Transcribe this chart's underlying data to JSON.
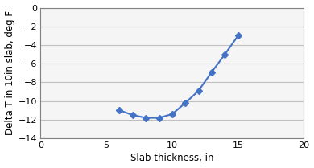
{
  "x": [
    6,
    7,
    8,
    9,
    10,
    11,
    12,
    13,
    14,
    15
  ],
  "y": [
    -11.0,
    -11.5,
    -11.8,
    -11.8,
    -11.4,
    -10.2,
    -8.9,
    -6.9,
    -5.0,
    -3.0
  ],
  "line_color": "#4472C4",
  "marker": "D",
  "marker_size": 4,
  "line_width": 1.5,
  "xlabel": "Slab thickness, in",
  "ylabel": "Delta T in 10in slab, deg F",
  "xlim": [
    0,
    20
  ],
  "ylim": [
    -14,
    0
  ],
  "xticks": [
    0,
    5,
    10,
    15,
    20
  ],
  "yticks": [
    0,
    -2,
    -4,
    -6,
    -8,
    -10,
    -12,
    -14
  ],
  "grid_color": "#C0C0C0",
  "plot_bg_color": "#F5F5F5",
  "background_color": "#FFFFFF",
  "xlabel_fontsize": 8.5,
  "ylabel_fontsize": 8.5,
  "tick_fontsize": 8
}
